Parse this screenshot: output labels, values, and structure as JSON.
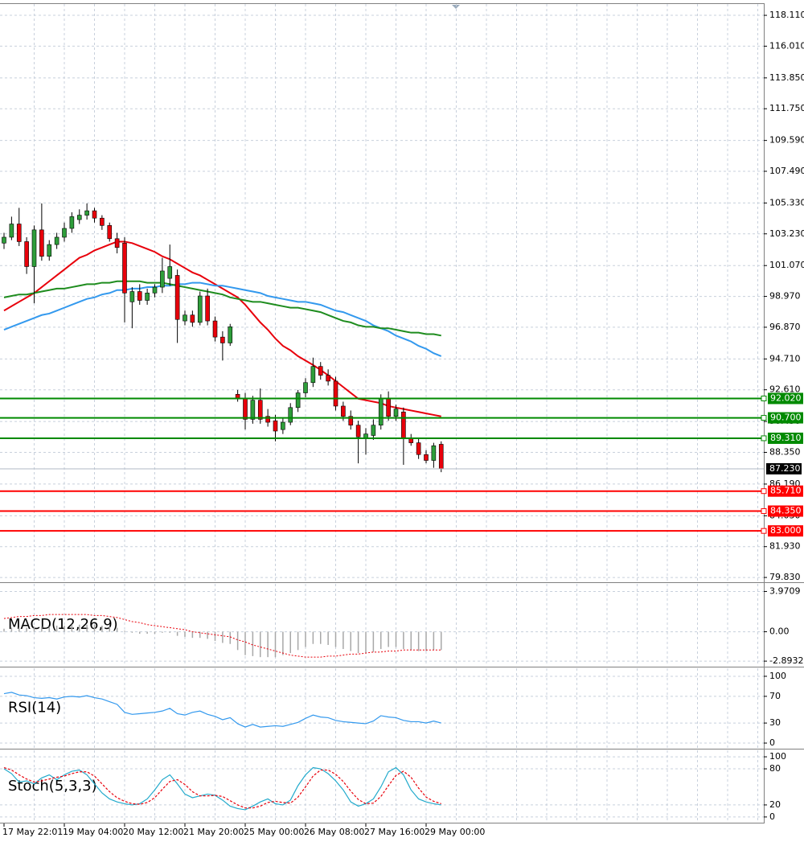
{
  "chart_data": [
    {
      "type": "candlestick",
      "categories": [
        "17 May 22:01",
        null,
        null,
        null,
        null,
        null,
        null,
        null,
        "19 May 04:00",
        null,
        null,
        null,
        null,
        null,
        null,
        null,
        "20 May 12:00",
        null,
        null,
        null,
        null,
        null,
        null,
        null,
        "21 May 20:00",
        null,
        null,
        null,
        null,
        null,
        null,
        null,
        "25 May 00:00",
        null,
        null,
        null,
        null,
        null,
        null,
        null,
        "26 May 08:00",
        null,
        null,
        null,
        null,
        null,
        null,
        null,
        "27 May 16:00",
        null,
        null,
        null,
        null,
        null,
        null,
        null,
        "29 May 00:00",
        null,
        null
      ],
      "open": [
        102.6,
        103.0,
        103.9,
        102.7,
        101.0,
        103.5,
        101.7,
        102.5,
        103.0,
        103.6,
        104.2,
        104.5,
        104.8,
        104.3,
        103.8,
        102.9,
        102.6,
        98.6,
        99.3,
        98.7,
        99.2,
        99.6,
        100.2,
        100.4,
        97.3,
        97.7,
        97.2,
        99.0,
        97.3,
        96.2,
        95.8,
        92.3,
        92.0,
        90.6,
        91.9,
        90.8,
        90.5,
        89.9,
        90.4,
        91.4,
        92.4,
        93.1,
        94.2,
        93.6,
        93.2,
        91.5,
        90.8,
        90.2,
        89.3,
        89.5,
        90.2,
        92.0,
        90.8,
        91.1,
        89.3,
        89.0,
        88.2,
        87.8,
        88.9
      ],
      "high": [
        103.3,
        104.4,
        105.0,
        103.0,
        103.8,
        105.3,
        102.8,
        103.3,
        104.0,
        104.7,
        104.9,
        105.3,
        105.0,
        104.5,
        104.0,
        103.3,
        103.0,
        99.6,
        99.8,
        99.5,
        99.8,
        101.6,
        102.5,
        100.8,
        98.0,
        98.0,
        99.3,
        99.5,
        97.6,
        96.6,
        97.1,
        92.6,
        92.4,
        92.2,
        92.7,
        91.3,
        90.9,
        90.7,
        91.7,
        92.6,
        93.4,
        94.8,
        94.5,
        94.0,
        93.5,
        91.8,
        91.2,
        90.5,
        90.0,
        90.6,
        92.3,
        92.5,
        91.6,
        91.4,
        89.6,
        89.3,
        88.5,
        89.0,
        89.1
      ],
      "low": [
        102.2,
        102.8,
        102.4,
        100.5,
        98.5,
        101.4,
        101.4,
        102.2,
        102.7,
        103.3,
        103.9,
        104.2,
        104.0,
        103.5,
        102.7,
        101.9,
        97.2,
        96.8,
        98.4,
        98.4,
        98.9,
        99.2,
        99.7,
        95.8,
        97.0,
        96.9,
        97.0,
        97.0,
        95.9,
        94.6,
        95.6,
        91.8,
        89.9,
        90.3,
        90.3,
        90.1,
        89.1,
        89.6,
        90.2,
        91.1,
        92.1,
        92.8,
        93.3,
        92.9,
        91.2,
        90.5,
        89.9,
        87.6,
        88.2,
        89.2,
        89.9,
        90.5,
        90.5,
        87.5,
        88.8,
        87.9,
        87.6,
        87.3,
        87.0
      ],
      "close": [
        103.0,
        103.9,
        102.7,
        101.0,
        103.5,
        101.7,
        102.5,
        103.0,
        103.6,
        104.4,
        104.5,
        104.8,
        104.3,
        103.8,
        102.9,
        102.3,
        99.2,
        99.3,
        98.7,
        99.2,
        99.6,
        100.7,
        101.0,
        97.4,
        97.7,
        97.2,
        99.0,
        97.3,
        96.2,
        95.8,
        96.9,
        92.0,
        90.6,
        91.9,
        90.6,
        90.4,
        89.8,
        90.4,
        91.4,
        92.4,
        93.1,
        94.2,
        93.6,
        93.2,
        91.5,
        90.8,
        90.2,
        89.4,
        89.6,
        90.2,
        92.0,
        90.8,
        91.3,
        89.3,
        89.0,
        88.2,
        87.8,
        88.8,
        87.23
      ],
      "bull_color": "#2e9e3a",
      "bear_color": "#e8000b",
      "overlays": [
        {
          "color": "#e8000b",
          "values": [
            98.0,
            98.3,
            98.6,
            98.9,
            99.2,
            99.6,
            100.0,
            100.4,
            100.8,
            101.2,
            101.6,
            101.8,
            102.1,
            102.3,
            102.5,
            102.7,
            102.7,
            102.6,
            102.4,
            102.2,
            102.0,
            101.7,
            101.5,
            101.2,
            100.9,
            100.6,
            100.4,
            100.1,
            99.8,
            99.5,
            99.2,
            98.9,
            98.4,
            97.8,
            97.2,
            96.7,
            96.1,
            95.6,
            95.3,
            94.9,
            94.6,
            94.3,
            93.96,
            93.6,
            93.2,
            92.8,
            92.4,
            92.0,
            91.9,
            91.8,
            91.7,
            91.5,
            91.4,
            91.3,
            91.2,
            91.1,
            91.0,
            90.9,
            90.8
          ]
        },
        {
          "color": "#3399ee",
          "values": [
            96.7,
            96.9,
            97.1,
            97.3,
            97.5,
            97.7,
            97.8,
            98.0,
            98.2,
            98.4,
            98.6,
            98.8,
            98.9,
            99.1,
            99.2,
            99.4,
            99.4,
            99.5,
            99.5,
            99.6,
            99.6,
            99.7,
            99.7,
            99.8,
            99.8,
            99.9,
            99.9,
            99.8,
            99.7,
            99.7,
            99.6,
            99.5,
            99.4,
            99.3,
            99.2,
            99.0,
            98.9,
            98.8,
            98.7,
            98.6,
            98.6,
            98.5,
            98.4,
            98.2,
            98.0,
            97.9,
            97.7,
            97.5,
            97.3,
            97.0,
            96.8,
            96.6,
            96.3,
            96.1,
            95.9,
            95.6,
            95.4,
            95.1,
            94.9
          ]
        },
        {
          "color": "#1e8c1e",
          "values": [
            98.9,
            99.0,
            99.1,
            99.1,
            99.2,
            99.3,
            99.4,
            99.5,
            99.5,
            99.6,
            99.7,
            99.8,
            99.8,
            99.9,
            99.9,
            100.0,
            100.0,
            100.0,
            100.0,
            99.9,
            99.9,
            99.9,
            99.8,
            99.7,
            99.6,
            99.5,
            99.4,
            99.3,
            99.2,
            99.1,
            98.9,
            98.8,
            98.7,
            98.6,
            98.6,
            98.5,
            98.4,
            98.3,
            98.2,
            98.2,
            98.1,
            98.0,
            97.9,
            97.7,
            97.5,
            97.3,
            97.2,
            97.0,
            96.9,
            96.9,
            96.8,
            96.8,
            96.7,
            96.6,
            96.5,
            96.5,
            96.4,
            96.4,
            96.3
          ]
        }
      ],
      "ylim": [
        79.56,
        118.88
      ],
      "yticks": [
        {
          "value": 118.11,
          "label": "118.110"
        },
        {
          "value": 116.01,
          "label": "116.010"
        },
        {
          "value": 113.85,
          "label": "113.850"
        },
        {
          "value": 111.75,
          "label": "111.750"
        },
        {
          "value": 109.59,
          "label": "109.590"
        },
        {
          "value": 107.49,
          "label": "107.490"
        },
        {
          "value": 105.33,
          "label": "105.330"
        },
        {
          "value": 103.23,
          "label": "103.230"
        },
        {
          "value": 101.07,
          "label": "101.070"
        },
        {
          "value": 98.97,
          "label": "98.970"
        },
        {
          "value": 96.87,
          "label": "96.870"
        },
        {
          "value": 94.71,
          "label": "94.710"
        },
        {
          "value": 92.61,
          "label": "92.610"
        },
        {
          "value": 90.45,
          "label": "90.450"
        },
        {
          "value": 88.35,
          "label": "88.350"
        },
        {
          "value": 86.19,
          "label": "86.190"
        },
        {
          "value": 84.03,
          "label": "84.030"
        },
        {
          "value": 81.93,
          "label": "81.930"
        },
        {
          "value": 79.83,
          "label": "79.830"
        }
      ],
      "levels": [
        {
          "value": 92.02,
          "label": "92.020",
          "color": "#008a00"
        },
        {
          "value": 90.7,
          "label": "90.700",
          "color": "#008a00"
        },
        {
          "value": 89.31,
          "label": "89.310",
          "color": "#008a00"
        },
        {
          "value": 85.71,
          "label": "85.710",
          "color": "#ff0000"
        },
        {
          "value": 84.35,
          "label": "84.350",
          "color": "#ff0000"
        },
        {
          "value": 83.0,
          "label": "83.000",
          "color": "#ff0000"
        }
      ],
      "current_price": {
        "value": 87.23,
        "label": "87.230"
      },
      "grid": true
    },
    {
      "type": "bar",
      "title": "MACD(12,26,9)",
      "color": "#a8a8a8",
      "values": [
        0.3,
        0.4,
        0.4,
        0.4,
        0.5,
        0.5,
        0.5,
        0.6,
        0.6,
        0.7,
        0.7,
        0.7,
        0.7,
        0.6,
        0.5,
        0.4,
        0.1,
        -0.1,
        -0.2,
        -0.2,
        -0.2,
        -0.1,
        -0.1,
        -0.4,
        -0.5,
        -0.6,
        -0.6,
        -0.7,
        -0.9,
        -1.1,
        -1.2,
        -1.8,
        -2.3,
        -2.4,
        -2.5,
        -2.5,
        -2.5,
        -2.3,
        -2.1,
        -1.8,
        -1.5,
        -1.2,
        -1.2,
        -1.3,
        -1.5,
        -1.7,
        -1.9,
        -2.1,
        -2.1,
        -2.0,
        -1.7,
        -1.5,
        -1.5,
        -1.7,
        -1.8,
        -1.9,
        -1.9,
        -1.8,
        -1.8
      ],
      "signal": {
        "color": "#e8000b",
        "values": [
          1.3,
          1.4,
          1.5,
          1.5,
          1.6,
          1.6,
          1.7,
          1.7,
          1.7,
          1.7,
          1.7,
          1.7,
          1.6,
          1.6,
          1.5,
          1.4,
          1.2,
          1.0,
          0.9,
          0.7,
          0.6,
          0.5,
          0.4,
          0.3,
          0.2,
          0.0,
          -0.1,
          -0.2,
          -0.3,
          -0.4,
          -0.5,
          -0.8,
          -1.0,
          -1.3,
          -1.5,
          -1.7,
          -1.9,
          -2.1,
          -2.3,
          -2.4,
          -2.5,
          -2.5,
          -2.5,
          -2.4,
          -2.4,
          -2.3,
          -2.2,
          -2.2,
          -2.1,
          -2.0,
          -2.0,
          -1.9,
          -1.9,
          -1.8,
          -1.8,
          -1.8,
          -1.8,
          -1.8,
          -1.8
        ]
      },
      "ylim": [
        -3.36,
        4.72
      ],
      "yticks": [
        3.9709,
        {
          "value": 0,
          "label": "0.00"
        },
        -2.8932
      ]
    },
    {
      "type": "line",
      "title": "RSI(14)",
      "series": [
        {
          "color": "#3399ee",
          "values": [
            74,
            76,
            72,
            71,
            68,
            67,
            68,
            66,
            69,
            70,
            69,
            71,
            68,
            66,
            62,
            58,
            46,
            43,
            44,
            45,
            46,
            48,
            52,
            44,
            42,
            46,
            48,
            43,
            40,
            35,
            38,
            29,
            24,
            28,
            24,
            25,
            26,
            25,
            28,
            31,
            37,
            42,
            39,
            38,
            34,
            32,
            31,
            30,
            29,
            33,
            41,
            39,
            38,
            34,
            32,
            32,
            30,
            33,
            30
          ]
        }
      ],
      "ylim": [
        -7.2,
        112
      ],
      "yticks": [
        100,
        70,
        30,
        0
      ]
    },
    {
      "type": "line",
      "title": "Stoch(5,3,3)",
      "series": [
        {
          "color": "#22aacc",
          "values": [
            80,
            72,
            58,
            60,
            55,
            65,
            70,
            62,
            70,
            76,
            78,
            70,
            55,
            40,
            30,
            25,
            22,
            20,
            22,
            30,
            45,
            62,
            70,
            55,
            38,
            32,
            35,
            38,
            36,
            28,
            18,
            14,
            12,
            18,
            25,
            30,
            22,
            20,
            28,
            52,
            70,
            82,
            80,
            72,
            60,
            45,
            25,
            18,
            22,
            30,
            50,
            75,
            82,
            70,
            45,
            30,
            25,
            22,
            20
          ]
        },
        {
          "color": "#e8000b",
          "dashed": true,
          "values": [
            82,
            78,
            70,
            63,
            58,
            60,
            63,
            66,
            68,
            72,
            75,
            75,
            68,
            55,
            42,
            32,
            26,
            22,
            21,
            24,
            32,
            46,
            59,
            62,
            54,
            42,
            35,
            35,
            36,
            34,
            27,
            20,
            15,
            15,
            18,
            24,
            26,
            24,
            23,
            33,
            50,
            68,
            78,
            78,
            71,
            59,
            43,
            29,
            22,
            23,
            34,
            52,
            69,
            76,
            66,
            48,
            33,
            26,
            22
          ]
        }
      ],
      "ylim": [
        -9.5,
        110.8
      ],
      "yticks": [
        100,
        80,
        20,
        0
      ]
    }
  ]
}
